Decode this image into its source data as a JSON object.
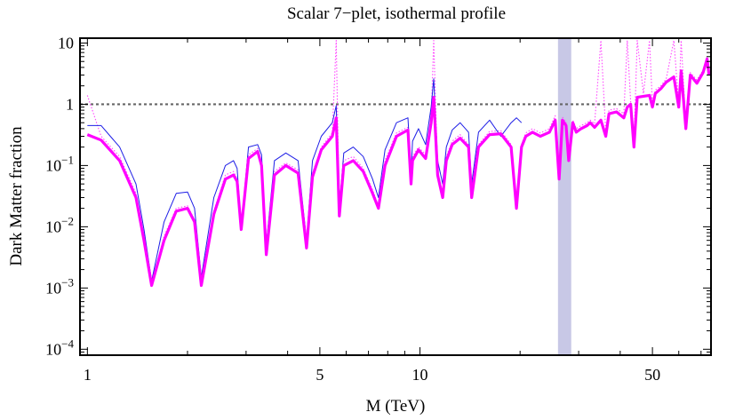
{
  "chart_data": {
    "type": "line",
    "title": "Scalar 7−plet, isothermal profile",
    "xlabel": "M (TeV)",
    "ylabel": "Dark Matter fraction",
    "xscale": "log",
    "yscale": "log",
    "xlim": [
      0.95,
      75
    ],
    "ylim": [
      8e-05,
      12
    ],
    "x_ticks": [
      {
        "value": 1,
        "label": "1"
      },
      {
        "value": 5,
        "label": "5"
      },
      {
        "value": 10,
        "label": "10"
      },
      {
        "value": 50,
        "label": "50"
      }
    ],
    "y_ticks": [
      {
        "value": 0.0001,
        "base": "10",
        "exp": "−4"
      },
      {
        "value": 0.001,
        "base": "10",
        "exp": "−3"
      },
      {
        "value": 0.01,
        "base": "10",
        "exp": "−2"
      },
      {
        "value": 0.1,
        "base": "10",
        "exp": "−1"
      },
      {
        "value": 1,
        "base": "1",
        "exp": ""
      },
      {
        "value": 10,
        "base": "10",
        "exp": ""
      }
    ],
    "reference_line": {
      "y": 1,
      "style": "dotted",
      "color": "#666666"
    },
    "excluded_band": {
      "x_range": [
        26.0,
        28.5
      ],
      "color": "#c8c8e6"
    },
    "series": [
      {
        "name": "main",
        "color": "#ff00ff",
        "style": "thick",
        "x": [
          1.0,
          1.1,
          1.25,
          1.4,
          1.48,
          1.56,
          1.7,
          1.85,
          2.0,
          2.1,
          2.2,
          2.4,
          2.6,
          2.75,
          2.82,
          2.9,
          3.05,
          3.25,
          3.34,
          3.45,
          3.65,
          3.95,
          4.3,
          4.56,
          4.75,
          5.05,
          5.45,
          5.6,
          5.72,
          5.9,
          6.3,
          6.75,
          7.2,
          7.5,
          7.85,
          8.5,
          9.2,
          9.4,
          9.5,
          9.9,
          10.4,
          10.8,
          11.0,
          11.3,
          11.7,
          12.0,
          12.5,
          13.2,
          14.0,
          14.3,
          15.0,
          16.2,
          17.5,
          18.8,
          19.5,
          20.2,
          20.8,
          21.8,
          23.0,
          24.5,
          25.5,
          26.2,
          26.8,
          27.5,
          28.0,
          28.8,
          29.5,
          30.5,
          31.8,
          32.5,
          33.5,
          35.0,
          36.2,
          37.0,
          39.0,
          41.0,
          42.0,
          43.0,
          44.0,
          45.0,
          47.0,
          49.0,
          50.0,
          51.0,
          53.0,
          55.0,
          58.0,
          60.0,
          61.0,
          63.0,
          65.0,
          68.0,
          71.0,
          73.0,
          74.0
        ],
        "y": [
          0.32,
          0.26,
          0.12,
          0.03,
          0.006,
          0.0011,
          0.006,
          0.018,
          0.02,
          0.012,
          0.0011,
          0.016,
          0.06,
          0.07,
          0.055,
          0.009,
          0.13,
          0.17,
          0.1,
          0.0035,
          0.07,
          0.1,
          0.075,
          0.0045,
          0.065,
          0.18,
          0.3,
          0.6,
          0.015,
          0.1,
          0.12,
          0.08,
          0.035,
          0.02,
          0.1,
          0.3,
          0.38,
          0.05,
          0.12,
          0.18,
          0.13,
          0.5,
          1.3,
          0.07,
          0.03,
          0.12,
          0.22,
          0.28,
          0.2,
          0.03,
          0.2,
          0.32,
          0.33,
          0.2,
          0.02,
          0.2,
          0.3,
          0.35,
          0.3,
          0.35,
          0.55,
          0.06,
          0.55,
          0.45,
          0.12,
          0.5,
          0.35,
          0.4,
          0.45,
          0.5,
          0.42,
          0.55,
          0.3,
          0.7,
          0.75,
          0.6,
          0.9,
          1.0,
          0.2,
          1.3,
          1.35,
          1.4,
          0.9,
          1.5,
          1.8,
          2.3,
          2.8,
          0.9,
          3.5,
          0.4,
          3.0,
          2.2,
          3.3,
          5.5,
          3.0
        ]
      },
      {
        "name": "upper",
        "color": "#1e1ee6",
        "style": "thin",
        "x": [
          1.0,
          1.1,
          1.25,
          1.4,
          1.48,
          1.56,
          1.7,
          1.85,
          2.0,
          2.1,
          2.2,
          2.4,
          2.6,
          2.75,
          2.82,
          2.9,
          3.05,
          3.25,
          3.34,
          3.45,
          3.65,
          3.95,
          4.3,
          4.56,
          4.75,
          5.05,
          5.45,
          5.6,
          5.72,
          5.9,
          6.3,
          6.75,
          7.2,
          7.5,
          7.85,
          8.5,
          9.2,
          9.4,
          9.5,
          9.9,
          10.4,
          10.8,
          11.0,
          11.3,
          11.7,
          12.0,
          12.5,
          13.2,
          14.0,
          14.3,
          15.0,
          16.2,
          17.5,
          18.8,
          19.5,
          20.2
        ],
        "y": [
          0.45,
          0.45,
          0.2,
          0.05,
          0.009,
          0.0013,
          0.012,
          0.035,
          0.037,
          0.02,
          0.0015,
          0.03,
          0.1,
          0.12,
          0.09,
          0.01,
          0.2,
          0.22,
          0.15,
          0.005,
          0.12,
          0.16,
          0.12,
          0.006,
          0.12,
          0.3,
          0.5,
          0.95,
          0.02,
          0.16,
          0.2,
          0.14,
          0.06,
          0.03,
          0.18,
          0.5,
          0.6,
          0.08,
          0.25,
          0.4,
          0.22,
          0.9,
          2.6,
          0.12,
          0.05,
          0.2,
          0.38,
          0.5,
          0.35,
          0.05,
          0.35,
          0.55,
          0.3,
          0.5,
          0.6,
          0.5
        ]
      },
      {
        "name": "dotted",
        "color": "#ff44ff",
        "style": "dotted",
        "x": [
          1.0,
          1.1,
          1.25,
          1.4,
          1.48,
          1.56,
          1.7,
          1.85,
          2.0,
          2.1,
          2.2,
          2.4,
          2.6,
          2.75,
          2.82,
          2.9,
          3.05,
          3.25,
          3.34,
          3.45,
          3.65,
          3.95,
          4.3,
          4.56,
          4.75,
          5.05,
          5.45,
          5.6,
          5.72,
          5.9,
          6.3,
          6.75,
          7.2,
          7.5,
          7.85,
          8.5,
          9.2,
          9.4,
          9.5,
          9.9,
          10.4,
          10.8,
          11.0,
          11.3,
          11.7,
          12.0,
          12.5,
          13.2,
          14.0,
          14.3,
          15.0,
          16.2,
          17.5,
          18.8,
          19.5,
          20.2,
          20.8,
          21.8,
          23.0,
          24.5,
          25.5,
          26.2,
          26.8,
          27.5,
          28.0,
          28.8,
          29.5,
          30.5,
          31.8,
          32.5,
          33.5,
          35.0,
          36.2,
          37.0,
          39.0,
          41.0,
          42.0,
          43.0,
          44.0,
          45.0,
          47.0,
          49.0,
          50.0,
          51.0,
          53.0,
          55.0,
          58.0,
          60.0,
          61.0,
          63.0,
          65.0,
          68.0,
          71.0,
          73.0,
          74.0
        ],
        "y": [
          1.4,
          0.3,
          0.14,
          0.035,
          0.007,
          0.0012,
          0.007,
          0.02,
          0.022,
          0.013,
          0.0012,
          0.018,
          0.07,
          0.08,
          0.06,
          0.01,
          0.15,
          0.19,
          0.11,
          0.004,
          0.08,
          0.11,
          0.085,
          0.005,
          0.075,
          0.2,
          0.34,
          11.0,
          0.017,
          0.12,
          0.14,
          0.09,
          0.04,
          0.022,
          0.12,
          0.34,
          0.42,
          0.06,
          0.14,
          0.2,
          0.15,
          0.6,
          11.0,
          0.08,
          0.035,
          0.14,
          0.25,
          0.32,
          0.22,
          0.035,
          0.22,
          0.36,
          0.37,
          0.22,
          0.025,
          0.22,
          0.34,
          0.4,
          0.34,
          0.4,
          0.65,
          0.07,
          0.62,
          0.5,
          0.14,
          0.55,
          0.4,
          0.45,
          0.5,
          0.55,
          0.48,
          11.0,
          0.35,
          0.8,
          0.85,
          0.7,
          11.0,
          1.1,
          0.25,
          11.0,
          1.5,
          11.0,
          1.0,
          1.7,
          2.0,
          2.6,
          11.0,
          1.0,
          11.0,
          0.45,
          3.3,
          2.5,
          3.6,
          6.0,
          3.3
        ]
      }
    ]
  }
}
